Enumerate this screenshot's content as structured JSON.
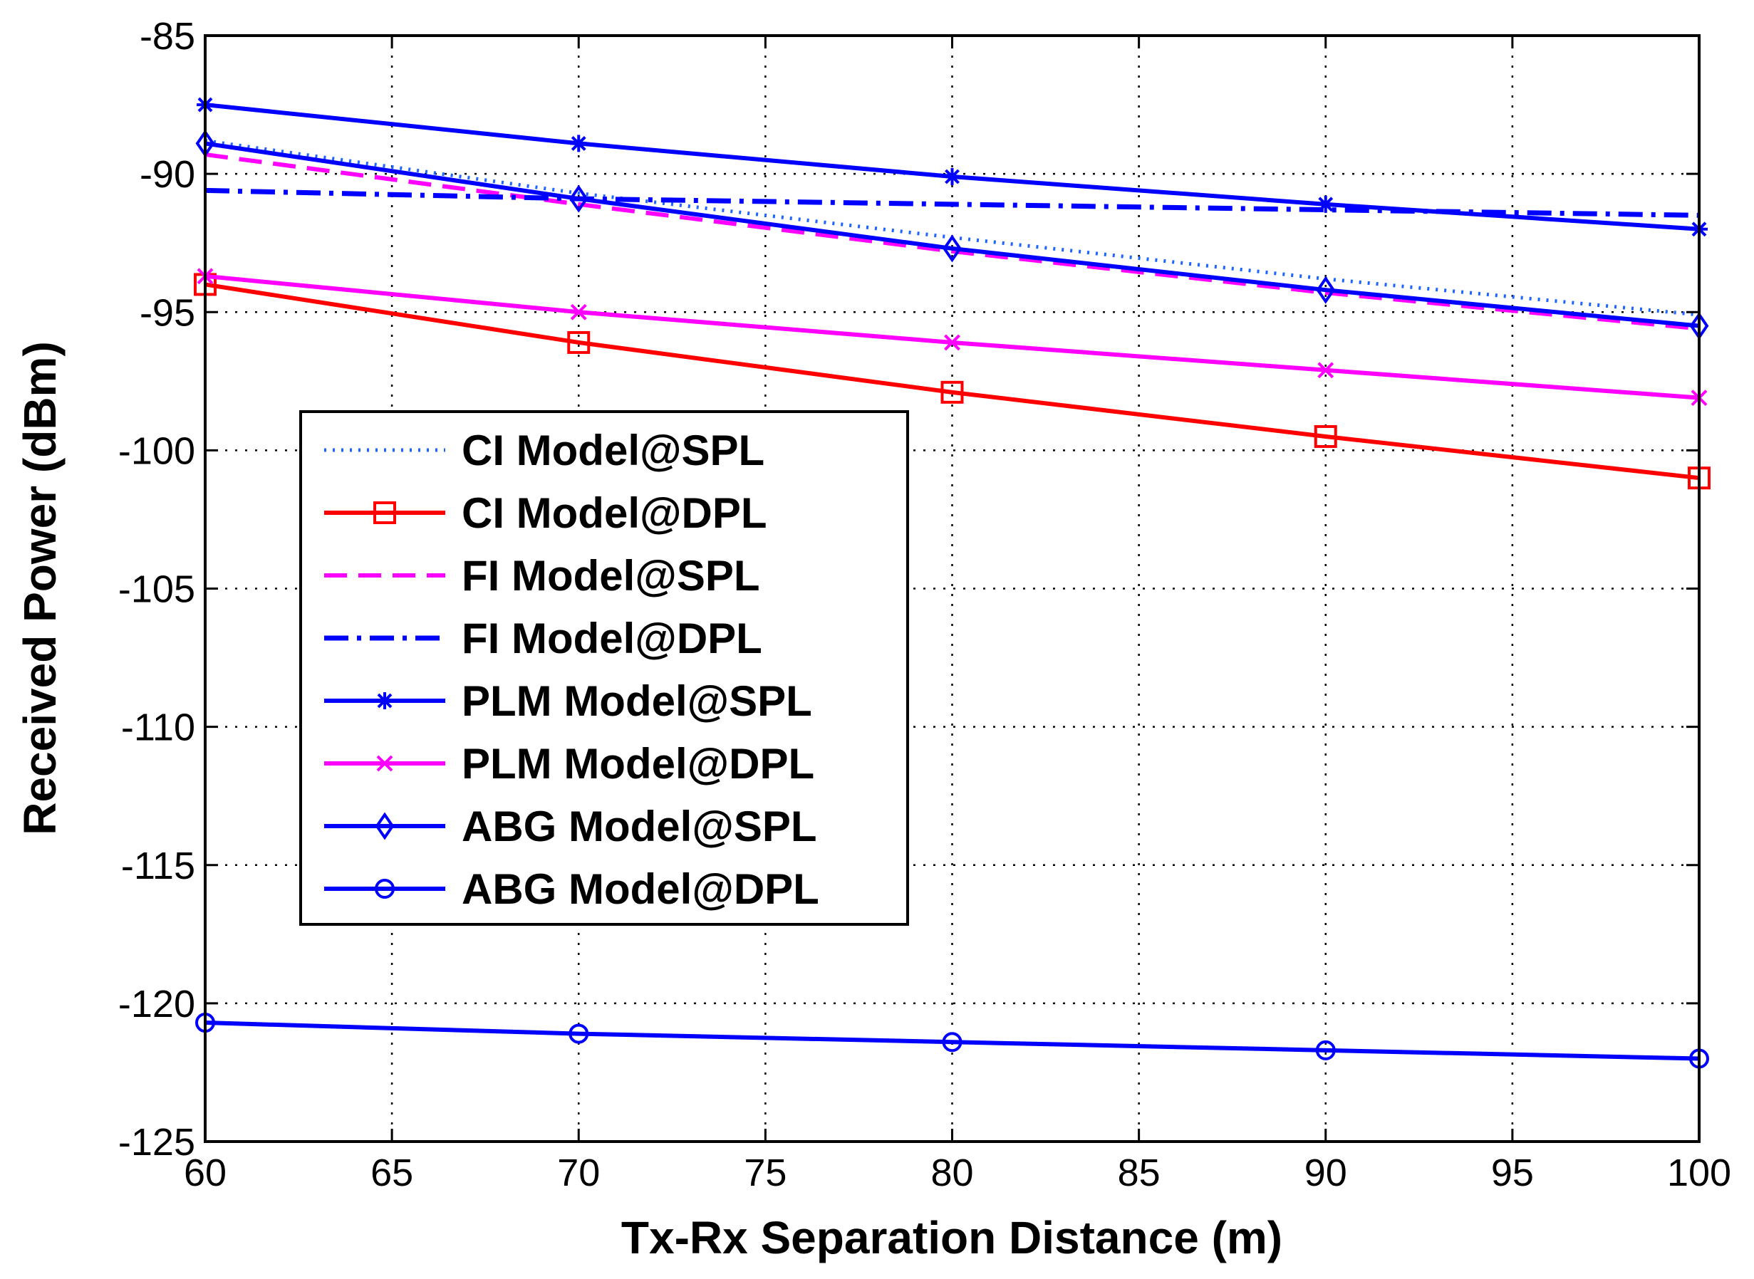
{
  "chart_data": {
    "type": "line",
    "title": "",
    "xlabel": "Tx-Rx Separation Distance (m)",
    "ylabel": "Received Power (dBm)",
    "xlim": [
      60,
      100
    ],
    "ylim": [
      -125,
      -85
    ],
    "xticks": [
      60,
      65,
      70,
      75,
      80,
      85,
      90,
      95,
      100
    ],
    "yticks": [
      -85,
      -90,
      -95,
      -100,
      -105,
      -110,
      -115,
      -120,
      -125
    ],
    "grid": true,
    "legend_position": "center-left",
    "series": [
      {
        "name": "CI Model@SPL",
        "x": [
          60,
          70,
          80,
          90,
          100
        ],
        "values": [
          -88.8,
          -90.7,
          -92.3,
          -93.8,
          -95.1
        ],
        "color": "#1e64ff",
        "line": "dotted",
        "marker": "none"
      },
      {
        "name": "CI Model@DPL",
        "x": [
          60,
          70,
          80,
          90,
          100
        ],
        "values": [
          -94.0,
          -96.1,
          -97.9,
          -99.5,
          -101.0
        ],
        "color": "#ff0000",
        "line": "solid",
        "marker": "square"
      },
      {
        "name": "FI Model@SPL",
        "x": [
          60,
          70,
          80,
          90,
          100
        ],
        "values": [
          -89.3,
          -91.1,
          -92.8,
          -94.3,
          -95.6
        ],
        "color": "#ff00ff",
        "line": "dashed",
        "marker": "none"
      },
      {
        "name": "FI Model@DPL",
        "x": [
          60,
          70,
          80,
          90,
          100
        ],
        "values": [
          -90.6,
          -90.9,
          -91.1,
          -91.3,
          -91.5
        ],
        "color": "#0000ff",
        "line": "dashdot",
        "marker": "none"
      },
      {
        "name": "PLM Model@SPL",
        "x": [
          60,
          70,
          80,
          90,
          100
        ],
        "values": [
          -87.5,
          -88.9,
          -90.1,
          -91.1,
          -92.0
        ],
        "color": "#0000ff",
        "line": "solid",
        "marker": "star"
      },
      {
        "name": "PLM Model@DPL",
        "x": [
          60,
          70,
          80,
          90,
          100
        ],
        "values": [
          -93.7,
          -95.0,
          -96.1,
          -97.1,
          -98.1
        ],
        "color": "#ff00ff",
        "line": "solid",
        "marker": "x"
      },
      {
        "name": "ABG Model@SPL",
        "x": [
          60,
          70,
          80,
          90,
          100
        ],
        "values": [
          -88.9,
          -90.9,
          -92.7,
          -94.2,
          -95.5
        ],
        "color": "#0000ff",
        "line": "solid",
        "marker": "diamond"
      },
      {
        "name": "ABG Model@DPL",
        "x": [
          60,
          70,
          80,
          90,
          100
        ],
        "values": [
          -120.7,
          -121.1,
          -121.4,
          -121.7,
          -122.0
        ],
        "color": "#0000ff",
        "line": "solid",
        "marker": "circle"
      }
    ]
  }
}
